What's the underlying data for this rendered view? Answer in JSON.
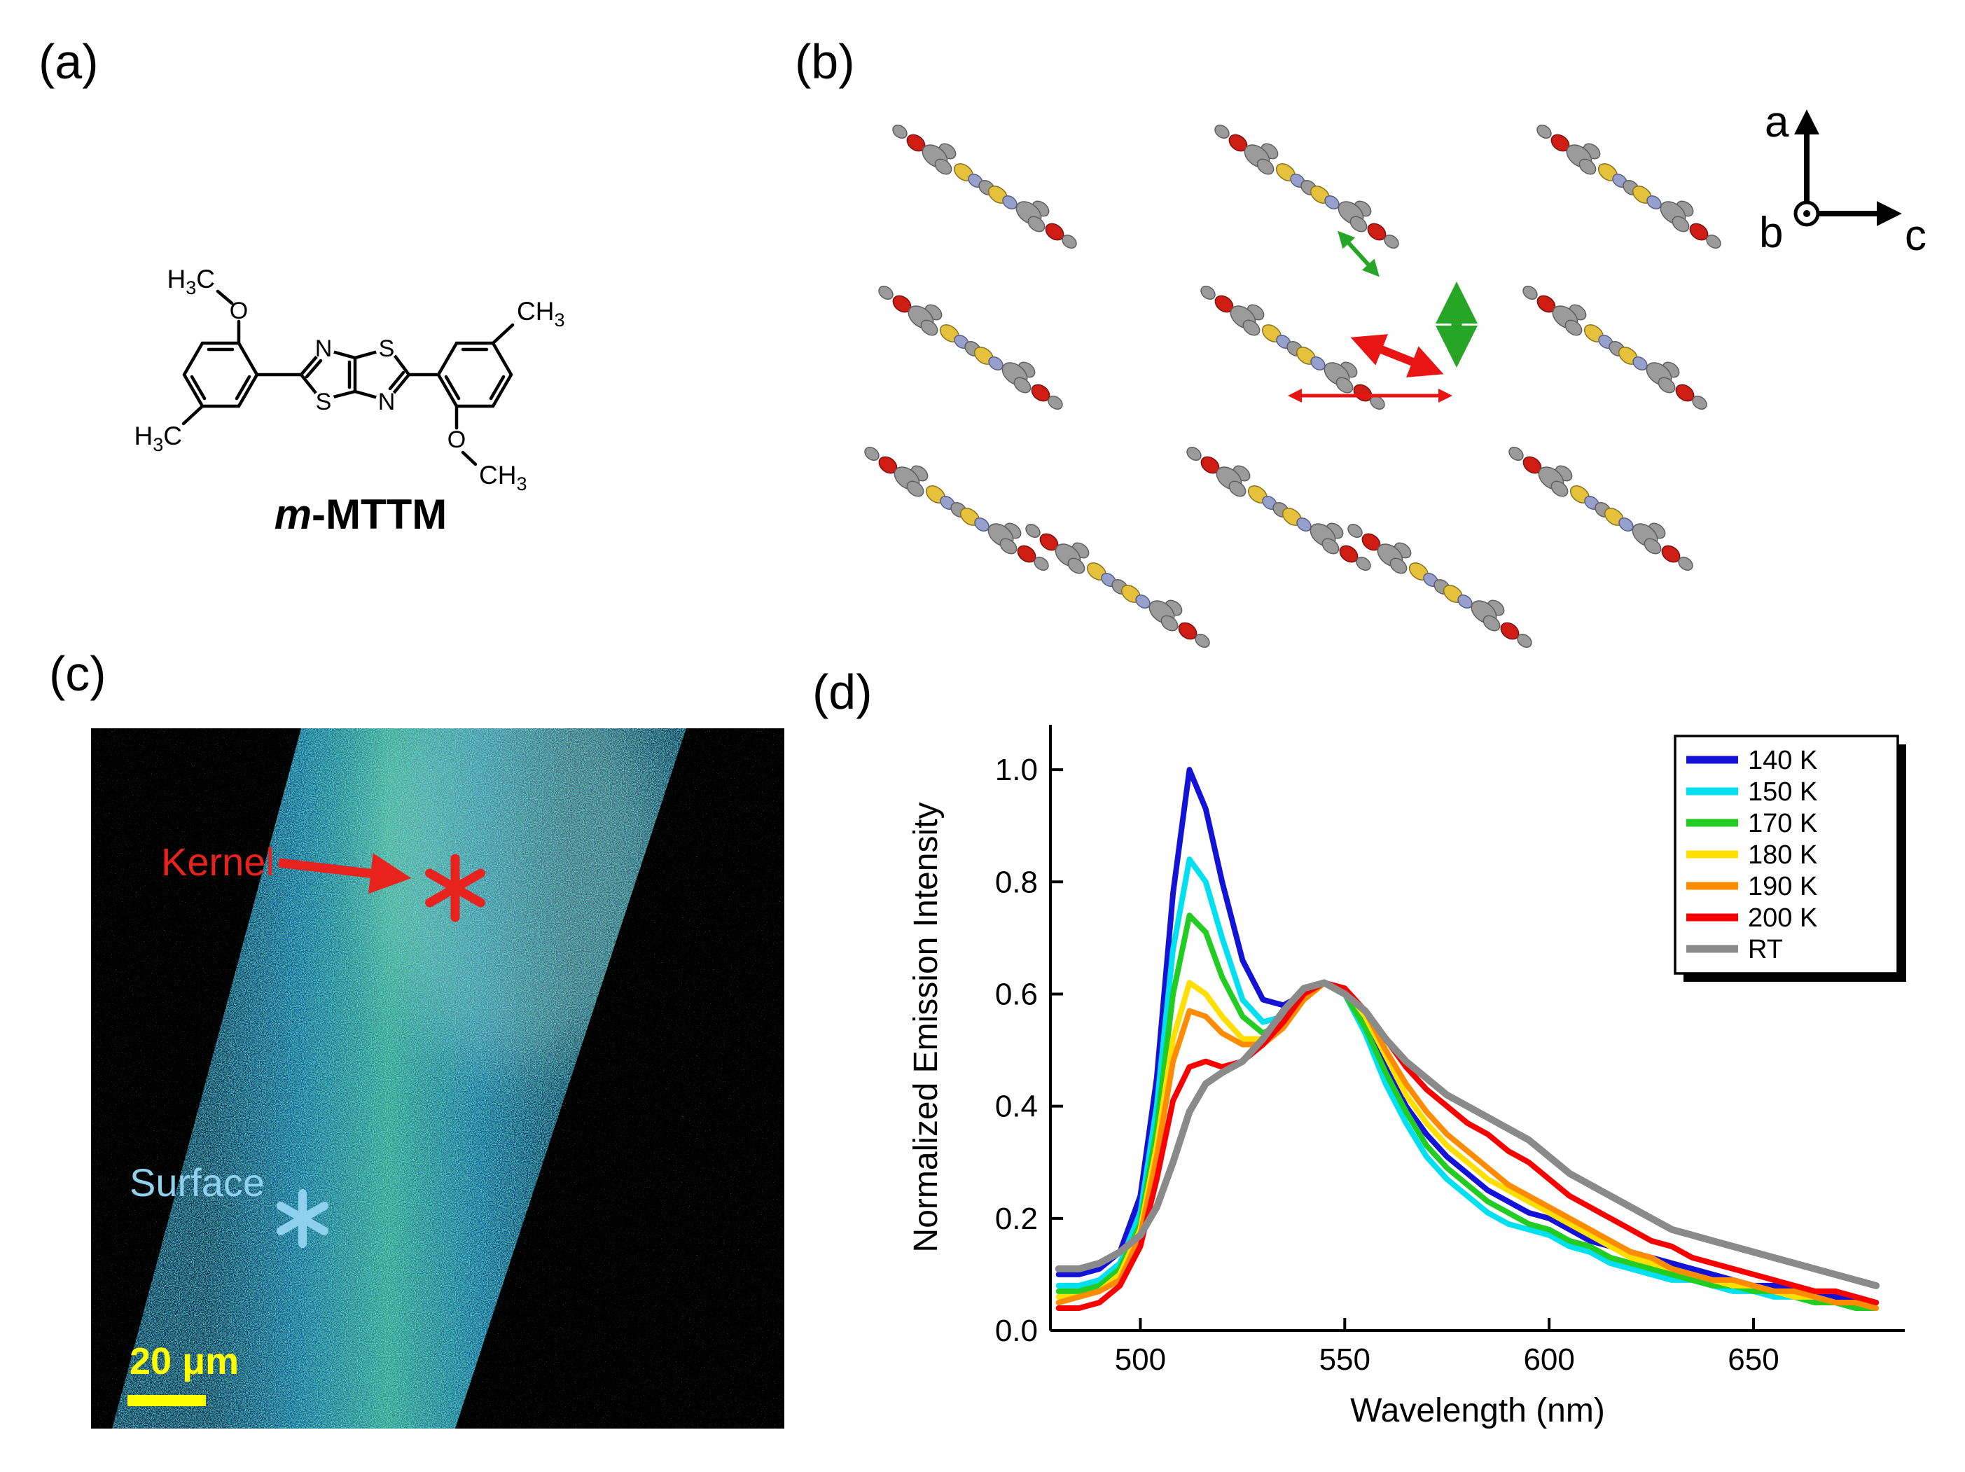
{
  "panel_a": {
    "label": "(a)",
    "molecule_name": {
      "italic": "m",
      "rest": "-MTTM"
    },
    "atoms": {
      "n_left": "N",
      "s_top_right": "S",
      "s_bottom_left": "S",
      "n_right": "N",
      "o_top_left": "O",
      "o_bottom_right": "O"
    },
    "groups": {
      "methoxy_top": {
        "pre": "H",
        "sub": "3",
        "post": "C"
      },
      "methyl_left": {
        "pre": "H",
        "sub": "3",
        "post": "C"
      },
      "methyl_right": {
        "pre": "CH",
        "sub": "3",
        "post": ""
      },
      "methoxy_bottom": {
        "pre": "CH",
        "sub": "3",
        "post": ""
      }
    }
  },
  "panel_b": {
    "label": "(b)",
    "axis_labels": {
      "a": "a",
      "b": "b",
      "c": "c"
    },
    "colors": {
      "carbon": "#9b9b9b",
      "oxygen": "#cf1d14",
      "sulfur": "#e6c23c",
      "nitrogen": "#97a0cc",
      "green_arrow": "#27a527",
      "red_arrow": "#e91414"
    }
  },
  "panel_c": {
    "label": "(c)",
    "kernel_label": "Kernel",
    "surface_label": "Surface",
    "scalebar_label": "20 μm",
    "markers": {
      "kernel": "asterisk",
      "surface": "asterisk"
    },
    "colors": {
      "kernel": "#e8231d",
      "surface": "#8ed0ee",
      "scalebar": "#ffff00"
    }
  },
  "panel_d": {
    "label": "(d)"
  },
  "chart_data": {
    "type": "line",
    "title": "",
    "xlabel": "Wavelength (nm)",
    "ylabel": "Normalized Emission Intensity",
    "xlim": [
      478,
      687
    ],
    "ylim": [
      0,
      1.08
    ],
    "xticks": [
      500,
      550,
      600,
      650
    ],
    "yticks": [
      0,
      0.2,
      0.4,
      0.6,
      0.8,
      1
    ],
    "legend_position": "top-right",
    "grid": false,
    "x": [
      480,
      485,
      490,
      495,
      500,
      504,
      508,
      512,
      516,
      520,
      525,
      530,
      535,
      540,
      545,
      550,
      555,
      560,
      565,
      570,
      575,
      580,
      585,
      590,
      595,
      600,
      605,
      610,
      615,
      620,
      625,
      630,
      635,
      640,
      645,
      650,
      655,
      660,
      665,
      670,
      675,
      680
    ],
    "series": [
      {
        "name": "140 K",
        "color": "#1512d8",
        "values": [
          0.1,
          0.1,
          0.11,
          0.14,
          0.24,
          0.45,
          0.78,
          1.0,
          0.93,
          0.8,
          0.66,
          0.59,
          0.58,
          0.6,
          0.62,
          0.61,
          0.55,
          0.47,
          0.4,
          0.35,
          0.31,
          0.28,
          0.25,
          0.23,
          0.21,
          0.2,
          0.18,
          0.16,
          0.15,
          0.14,
          0.13,
          0.12,
          0.11,
          0.1,
          0.09,
          0.08,
          0.08,
          0.07,
          0.06,
          0.06,
          0.05,
          0.05
        ]
      },
      {
        "name": "150 K",
        "color": "#00e0f0",
        "values": [
          0.08,
          0.08,
          0.09,
          0.12,
          0.21,
          0.4,
          0.68,
          0.84,
          0.8,
          0.7,
          0.59,
          0.55,
          0.56,
          0.59,
          0.62,
          0.6,
          0.53,
          0.44,
          0.37,
          0.31,
          0.27,
          0.24,
          0.21,
          0.19,
          0.18,
          0.17,
          0.15,
          0.14,
          0.12,
          0.11,
          0.1,
          0.09,
          0.09,
          0.08,
          0.07,
          0.07,
          0.06,
          0.06,
          0.05,
          0.05,
          0.04,
          0.04
        ]
      },
      {
        "name": "170 K",
        "color": "#22cc22",
        "values": [
          0.07,
          0.07,
          0.08,
          0.11,
          0.19,
          0.36,
          0.6,
          0.74,
          0.71,
          0.63,
          0.56,
          0.53,
          0.55,
          0.59,
          0.62,
          0.6,
          0.54,
          0.46,
          0.39,
          0.33,
          0.29,
          0.26,
          0.23,
          0.21,
          0.19,
          0.18,
          0.16,
          0.15,
          0.13,
          0.12,
          0.11,
          0.1,
          0.09,
          0.08,
          0.08,
          0.07,
          0.07,
          0.06,
          0.05,
          0.05,
          0.04,
          0.04
        ]
      },
      {
        "name": "180 K",
        "color": "#ffdf00",
        "values": [
          0.06,
          0.06,
          0.07,
          0.1,
          0.18,
          0.33,
          0.52,
          0.62,
          0.6,
          0.56,
          0.52,
          0.52,
          0.55,
          0.59,
          0.62,
          0.61,
          0.56,
          0.49,
          0.42,
          0.37,
          0.33,
          0.3,
          0.27,
          0.25,
          0.23,
          0.21,
          0.19,
          0.17,
          0.15,
          0.13,
          0.12,
          0.11,
          0.1,
          0.09,
          0.08,
          0.08,
          0.07,
          0.06,
          0.06,
          0.05,
          0.05,
          0.04
        ]
      },
      {
        "name": "190 K",
        "color": "#ff8c00",
        "values": [
          0.05,
          0.06,
          0.07,
          0.09,
          0.17,
          0.31,
          0.48,
          0.57,
          0.56,
          0.53,
          0.51,
          0.51,
          0.54,
          0.59,
          0.62,
          0.61,
          0.57,
          0.5,
          0.44,
          0.39,
          0.35,
          0.32,
          0.29,
          0.26,
          0.24,
          0.22,
          0.2,
          0.18,
          0.16,
          0.14,
          0.13,
          0.11,
          0.1,
          0.09,
          0.09,
          0.08,
          0.07,
          0.07,
          0.06,
          0.05,
          0.05,
          0.04
        ]
      },
      {
        "name": "200 K",
        "color": "#f80000",
        "values": [
          0.04,
          0.04,
          0.05,
          0.08,
          0.15,
          0.27,
          0.41,
          0.47,
          0.48,
          0.47,
          0.48,
          0.51,
          0.55,
          0.6,
          0.62,
          0.61,
          0.57,
          0.52,
          0.47,
          0.43,
          0.4,
          0.37,
          0.35,
          0.32,
          0.3,
          0.27,
          0.24,
          0.22,
          0.2,
          0.18,
          0.16,
          0.15,
          0.13,
          0.12,
          0.11,
          0.1,
          0.09,
          0.08,
          0.07,
          0.07,
          0.06,
          0.05
        ]
      },
      {
        "name": "RT",
        "color": "#8a8a8a",
        "values": [
          0.11,
          0.11,
          0.12,
          0.14,
          0.17,
          0.22,
          0.3,
          0.39,
          0.44,
          0.46,
          0.48,
          0.52,
          0.57,
          0.61,
          0.62,
          0.6,
          0.57,
          0.52,
          0.48,
          0.45,
          0.42,
          0.4,
          0.38,
          0.36,
          0.34,
          0.31,
          0.28,
          0.26,
          0.24,
          0.22,
          0.2,
          0.18,
          0.17,
          0.16,
          0.15,
          0.14,
          0.13,
          0.12,
          0.11,
          0.1,
          0.09,
          0.08
        ]
      }
    ]
  }
}
